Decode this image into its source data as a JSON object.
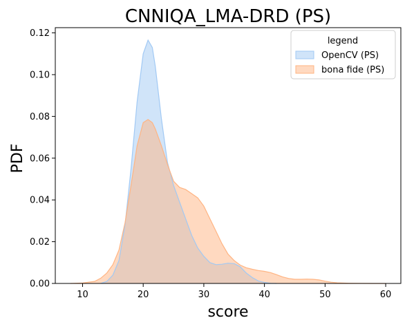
{
  "chart_data": {
    "type": "area",
    "title": "CNNIQA_LMA-DRD (PS)",
    "xlabel": "score",
    "ylabel": "PDF",
    "xlim": [
      5.5,
      62.5
    ],
    "ylim": [
      0,
      0.1225
    ],
    "xticks": [
      10,
      20,
      30,
      40,
      50,
      60
    ],
    "yticks": [
      0.0,
      0.02,
      0.04,
      0.06,
      0.08,
      0.1,
      0.12
    ],
    "ytick_labels": [
      "0.00",
      "0.02",
      "0.04",
      "0.06",
      "0.08",
      "0.10",
      "0.12"
    ],
    "grid": false,
    "legend": {
      "title": "legend",
      "placement": "top-right"
    },
    "series": [
      {
        "name": "OpenCV (PS)",
        "fill": "#a1c9f4",
        "stroke": "#a1c9f4",
        "points": [
          [
            13,
            0.0
          ],
          [
            14,
            0.001
          ],
          [
            15,
            0.004
          ],
          [
            16,
            0.011
          ],
          [
            17,
            0.028
          ],
          [
            18,
            0.055
          ],
          [
            19,
            0.087
          ],
          [
            20,
            0.11
          ],
          [
            20.8,
            0.1165
          ],
          [
            21.5,
            0.113
          ],
          [
            22,
            0.104
          ],
          [
            23,
            0.079
          ],
          [
            24,
            0.058
          ],
          [
            25,
            0.047
          ],
          [
            26,
            0.039
          ],
          [
            27,
            0.031
          ],
          [
            28,
            0.023
          ],
          [
            29,
            0.017
          ],
          [
            30,
            0.013
          ],
          [
            31,
            0.01
          ],
          [
            32,
            0.009
          ],
          [
            33,
            0.0092
          ],
          [
            34,
            0.0097
          ],
          [
            35,
            0.0095
          ],
          [
            36,
            0.008
          ],
          [
            37,
            0.005
          ],
          [
            38,
            0.0028
          ],
          [
            39,
            0.0012
          ],
          [
            40,
            0.0005
          ],
          [
            41,
            0.0001
          ],
          [
            42,
            0.0
          ]
        ]
      },
      {
        "name": "bona fide (PS)",
        "fill": "#ffb482",
        "stroke": "#ffb482",
        "points": [
          [
            8,
            0.0
          ],
          [
            10,
            0.0002
          ],
          [
            12,
            0.001
          ],
          [
            13,
            0.0025
          ],
          [
            14,
            0.005
          ],
          [
            15,
            0.009
          ],
          [
            16,
            0.016
          ],
          [
            17,
            0.029
          ],
          [
            18,
            0.047
          ],
          [
            19,
            0.066
          ],
          [
            20,
            0.077
          ],
          [
            20.8,
            0.0785
          ],
          [
            21.5,
            0.077
          ],
          [
            22,
            0.074
          ],
          [
            23,
            0.066
          ],
          [
            24,
            0.057
          ],
          [
            25,
            0.049
          ],
          [
            26,
            0.046
          ],
          [
            27,
            0.045
          ],
          [
            28,
            0.043
          ],
          [
            29,
            0.041
          ],
          [
            30,
            0.037
          ],
          [
            31,
            0.031
          ],
          [
            32,
            0.025
          ],
          [
            33,
            0.019
          ],
          [
            34,
            0.014
          ],
          [
            35,
            0.011
          ],
          [
            36,
            0.0088
          ],
          [
            37,
            0.0075
          ],
          [
            38,
            0.0068
          ],
          [
            39,
            0.0062
          ],
          [
            40,
            0.0058
          ],
          [
            41,
            0.0052
          ],
          [
            42,
            0.0042
          ],
          [
            43,
            0.0031
          ],
          [
            44,
            0.0024
          ],
          [
            45,
            0.002
          ],
          [
            46,
            0.002
          ],
          [
            47,
            0.0021
          ],
          [
            48,
            0.002
          ],
          [
            49,
            0.0017
          ],
          [
            50,
            0.0011
          ],
          [
            51,
            0.0006
          ],
          [
            52,
            0.0003
          ],
          [
            54,
            0.0001
          ],
          [
            56,
            3e-05
          ],
          [
            58,
            1e-05
          ],
          [
            60,
            0.0
          ]
        ]
      }
    ]
  }
}
